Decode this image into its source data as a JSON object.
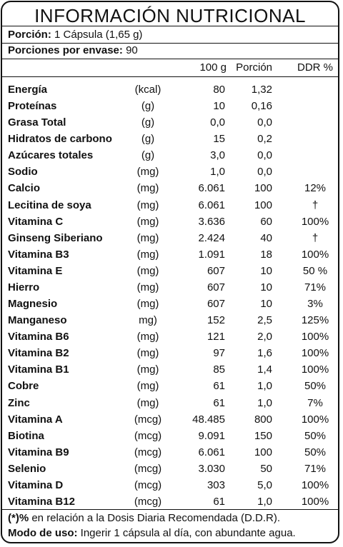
{
  "title": "INFORMACIÓN  NUTRICIONAL",
  "serving": {
    "porcion_label": "Porción:",
    "porcion_value": "1 Cápsula (1,65 g)",
    "porciones_label": "Porciones por envase:",
    "porciones_value": "90"
  },
  "columns": {
    "g100": "100 g",
    "porcion": "Porción",
    "ddr": "DDR %"
  },
  "rows": [
    {
      "name": "Energía",
      "unit": "(kcal)",
      "g100": "80",
      "porcion": "1,32",
      "ddr": ""
    },
    {
      "name": "Proteínas",
      "unit": "(g)",
      "g100": "10",
      "porcion": "0,16",
      "ddr": ""
    },
    {
      "name": "Grasa Total",
      "unit": "(g)",
      "g100": "0,0",
      "porcion": "0,0",
      "ddr": ""
    },
    {
      "name": "Hidratos de carbono",
      "unit": "(g)",
      "g100": "15",
      "porcion": "0,2",
      "ddr": ""
    },
    {
      "name": "Azúcares totales",
      "unit": "(g)",
      "g100": "3,0",
      "porcion": "0,0",
      "ddr": ""
    },
    {
      "name": "Sodio",
      "unit": "(mg)",
      "g100": "1,0",
      "porcion": "0,0",
      "ddr": ""
    },
    {
      "name": "Calcio",
      "unit": "(mg)",
      "g100": "6.061",
      "porcion": "100",
      "ddr": "12%"
    },
    {
      "name": "Lecitina de soya",
      "unit": "(mg)",
      "g100": "6.061",
      "porcion": "100",
      "ddr": "†"
    },
    {
      "name": "Vitamina C",
      "unit": "(mg)",
      "g100": "3.636",
      "porcion": "60",
      "ddr": "100%"
    },
    {
      "name": "Ginseng Siberiano",
      "unit": "(mg)",
      "g100": "2.424",
      "porcion": "40",
      "ddr": "†"
    },
    {
      "name": "Vitamina B3",
      "unit": "(mg)",
      "g100": "1.091",
      "porcion": "18",
      "ddr": "100%"
    },
    {
      "name": "Vitamina E",
      "unit": "(mg)",
      "g100": "607",
      "porcion": "10",
      "ddr": "50 %"
    },
    {
      "name": "Hierro",
      "unit": "(mg)",
      "g100": "607",
      "porcion": "10",
      "ddr": "71%"
    },
    {
      "name": "Magnesio",
      "unit": "(mg)",
      "g100": "607",
      "porcion": "10",
      "ddr": "3%"
    },
    {
      "name": "Manganeso",
      "unit": "mg)",
      "g100": "152",
      "porcion": "2,5",
      "ddr": "125%"
    },
    {
      "name": "Vitamina B6",
      "unit": "(mg)",
      "g100": "121",
      "porcion": "2,0",
      "ddr": "100%"
    },
    {
      "name": "Vitamina B2",
      "unit": "(mg)",
      "g100": "97",
      "porcion": "1,6",
      "ddr": "100%"
    },
    {
      "name": "Vitamina B1",
      "unit": "(mg)",
      "g100": "85",
      "porcion": "1,4",
      "ddr": "100%"
    },
    {
      "name": "Cobre",
      "unit": "(mg)",
      "g100": "61",
      "porcion": "1,0",
      "ddr": "50%"
    },
    {
      "name": "Zinc",
      "unit": "(mg)",
      "g100": "61",
      "porcion": "1,0",
      "ddr": "7%"
    },
    {
      "name": "Vitamina A",
      "unit": "(mcg)",
      "g100": "48.485",
      "porcion": "800",
      "ddr": "100%"
    },
    {
      "name": "Biotina",
      "unit": "(mcg)",
      "g100": "9.091",
      "porcion": "150",
      "ddr": "50%"
    },
    {
      "name": "Vitamina B9",
      "unit": "(mcg)",
      "g100": "6.061",
      "porcion": "100",
      "ddr": "50%"
    },
    {
      "name": "Selenio",
      "unit": "(mcg)",
      "g100": "3.030",
      "porcion": "50",
      "ddr": "71%"
    },
    {
      "name": "Vitamina D",
      "unit": "(mcg)",
      "g100": "303",
      "porcion": "5,0",
      "ddr": "100%"
    },
    {
      "name": "Vitamina B12",
      "unit": "(mcg)",
      "g100": "61",
      "porcion": "1,0",
      "ddr": "100%"
    }
  ],
  "footer": {
    "note_label": "(*)%",
    "note_text": " en relación a la Dosis Diaria Recomendada (D.D.R).",
    "uso_label": "Modo de uso:",
    "uso_text": " Ingerir 1 cápsula al día, con abundante agua."
  }
}
